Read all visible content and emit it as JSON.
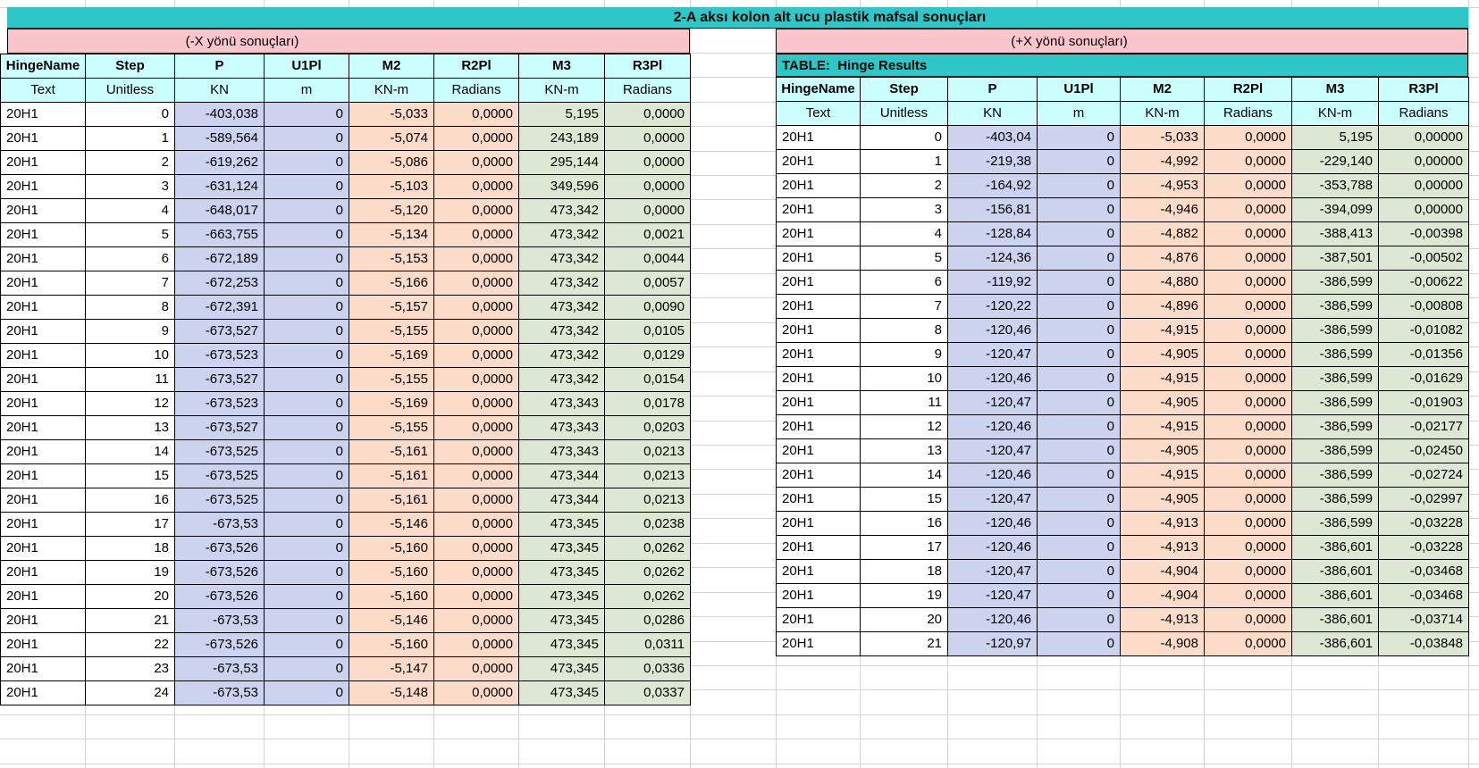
{
  "title": "2-A aksı kolon alt ucu plastik mafsal sonuçları",
  "left_table": {
    "direction_header": "(-X yönü sonuçları)",
    "columns": [
      "HingeName",
      "Step",
      "P",
      "U1Pl",
      "M2",
      "R2Pl",
      "M3",
      "R3Pl"
    ],
    "units": [
      "Text",
      "Unitless",
      "KN",
      "m",
      "KN-m",
      "Radians",
      "KN-m",
      "Radians"
    ],
    "rows": [
      [
        "20H1",
        "0",
        "-403,038",
        "0",
        "-5,033",
        "0,0000",
        "5,195",
        "0,0000"
      ],
      [
        "20H1",
        "1",
        "-589,564",
        "0",
        "-5,074",
        "0,0000",
        "243,189",
        "0,0000"
      ],
      [
        "20H1",
        "2",
        "-619,262",
        "0",
        "-5,086",
        "0,0000",
        "295,144",
        "0,0000"
      ],
      [
        "20H1",
        "3",
        "-631,124",
        "0",
        "-5,103",
        "0,0000",
        "349,596",
        "0,0000"
      ],
      [
        "20H1",
        "4",
        "-648,017",
        "0",
        "-5,120",
        "0,0000",
        "473,342",
        "0,0000"
      ],
      [
        "20H1",
        "5",
        "-663,755",
        "0",
        "-5,134",
        "0,0000",
        "473,342",
        "0,0021"
      ],
      [
        "20H1",
        "6",
        "-672,189",
        "0",
        "-5,153",
        "0,0000",
        "473,342",
        "0,0044"
      ],
      [
        "20H1",
        "7",
        "-672,253",
        "0",
        "-5,166",
        "0,0000",
        "473,342",
        "0,0057"
      ],
      [
        "20H1",
        "8",
        "-672,391",
        "0",
        "-5,157",
        "0,0000",
        "473,342",
        "0,0090"
      ],
      [
        "20H1",
        "9",
        "-673,527",
        "0",
        "-5,155",
        "0,0000",
        "473,342",
        "0,0105"
      ],
      [
        "20H1",
        "10",
        "-673,523",
        "0",
        "-5,169",
        "0,0000",
        "473,342",
        "0,0129"
      ],
      [
        "20H1",
        "11",
        "-673,527",
        "0",
        "-5,155",
        "0,0000",
        "473,342",
        "0,0154"
      ],
      [
        "20H1",
        "12",
        "-673,523",
        "0",
        "-5,169",
        "0,0000",
        "473,343",
        "0,0178"
      ],
      [
        "20H1",
        "13",
        "-673,527",
        "0",
        "-5,155",
        "0,0000",
        "473,343",
        "0,0203"
      ],
      [
        "20H1",
        "14",
        "-673,525",
        "0",
        "-5,161",
        "0,0000",
        "473,343",
        "0,0213"
      ],
      [
        "20H1",
        "15",
        "-673,525",
        "0",
        "-5,161",
        "0,0000",
        "473,344",
        "0,0213"
      ],
      [
        "20H1",
        "16",
        "-673,525",
        "0",
        "-5,161",
        "0,0000",
        "473,344",
        "0,0213"
      ],
      [
        "20H1",
        "17",
        "-673,53",
        "0",
        "-5,146",
        "0,0000",
        "473,345",
        "0,0238"
      ],
      [
        "20H1",
        "18",
        "-673,526",
        "0",
        "-5,160",
        "0,0000",
        "473,345",
        "0,0262"
      ],
      [
        "20H1",
        "19",
        "-673,526",
        "0",
        "-5,160",
        "0,0000",
        "473,345",
        "0,0262"
      ],
      [
        "20H1",
        "20",
        "-673,526",
        "0",
        "-5,160",
        "0,0000",
        "473,345",
        "0,0262"
      ],
      [
        "20H1",
        "21",
        "-673,53",
        "0",
        "-5,146",
        "0,0000",
        "473,345",
        "0,0286"
      ],
      [
        "20H1",
        "22",
        "-673,526",
        "0",
        "-5,160",
        "0,0000",
        "473,345",
        "0,0311"
      ],
      [
        "20H1",
        "23",
        "-673,53",
        "0",
        "-5,147",
        "0,0000",
        "473,345",
        "0,0336"
      ],
      [
        "20H1",
        "24",
        "-673,53",
        "0",
        "-5,148",
        "0,0000",
        "473,345",
        "0,0337"
      ]
    ]
  },
  "right_table": {
    "direction_header": "(+X yönü sonuçları)",
    "table_label": "TABLE:  Hinge Results",
    "columns": [
      "HingeName",
      "Step",
      "P",
      "U1Pl",
      "M2",
      "R2Pl",
      "M3",
      "R3Pl"
    ],
    "units": [
      "Text",
      "Unitless",
      "KN",
      "m",
      "KN-m",
      "Radians",
      "KN-m",
      "Radians"
    ],
    "rows": [
      [
        "20H1",
        "0",
        "-403,04",
        "0",
        "-5,033",
        "0,0000",
        "5,195",
        "0,00000"
      ],
      [
        "20H1",
        "1",
        "-219,38",
        "0",
        "-4,992",
        "0,0000",
        "-229,140",
        "0,00000"
      ],
      [
        "20H1",
        "2",
        "-164,92",
        "0",
        "-4,953",
        "0,0000",
        "-353,788",
        "0,00000"
      ],
      [
        "20H1",
        "3",
        "-156,81",
        "0",
        "-4,946",
        "0,0000",
        "-394,099",
        "0,00000"
      ],
      [
        "20H1",
        "4",
        "-128,84",
        "0",
        "-4,882",
        "0,0000",
        "-388,413",
        "-0,00398"
      ],
      [
        "20H1",
        "5",
        "-124,36",
        "0",
        "-4,876",
        "0,0000",
        "-387,501",
        "-0,00502"
      ],
      [
        "20H1",
        "6",
        "-119,92",
        "0",
        "-4,880",
        "0,0000",
        "-386,599",
        "-0,00622"
      ],
      [
        "20H1",
        "7",
        "-120,22",
        "0",
        "-4,896",
        "0,0000",
        "-386,599",
        "-0,00808"
      ],
      [
        "20H1",
        "8",
        "-120,46",
        "0",
        "-4,915",
        "0,0000",
        "-386,599",
        "-0,01082"
      ],
      [
        "20H1",
        "9",
        "-120,47",
        "0",
        "-4,905",
        "0,0000",
        "-386,599",
        "-0,01356"
      ],
      [
        "20H1",
        "10",
        "-120,46",
        "0",
        "-4,915",
        "0,0000",
        "-386,599",
        "-0,01629"
      ],
      [
        "20H1",
        "11",
        "-120,47",
        "0",
        "-4,905",
        "0,0000",
        "-386,599",
        "-0,01903"
      ],
      [
        "20H1",
        "12",
        "-120,46",
        "0",
        "-4,915",
        "0,0000",
        "-386,599",
        "-0,02177"
      ],
      [
        "20H1",
        "13",
        "-120,47",
        "0",
        "-4,905",
        "0,0000",
        "-386,599",
        "-0,02450"
      ],
      [
        "20H1",
        "14",
        "-120,46",
        "0",
        "-4,915",
        "0,0000",
        "-386,599",
        "-0,02724"
      ],
      [
        "20H1",
        "15",
        "-120,47",
        "0",
        "-4,905",
        "0,0000",
        "-386,599",
        "-0,02997"
      ],
      [
        "20H1",
        "16",
        "-120,46",
        "0",
        "-4,913",
        "0,0000",
        "-386,599",
        "-0,03228"
      ],
      [
        "20H1",
        "17",
        "-120,46",
        "0",
        "-4,913",
        "0,0000",
        "-386,601",
        "-0,03228"
      ],
      [
        "20H1",
        "18",
        "-120,47",
        "0",
        "-4,904",
        "0,0000",
        "-386,601",
        "-0,03468"
      ],
      [
        "20H1",
        "19",
        "-120,47",
        "0",
        "-4,904",
        "0,0000",
        "-386,601",
        "-0,03468"
      ],
      [
        "20H1",
        "20",
        "-120,46",
        "0",
        "-4,913",
        "0,0000",
        "-386,601",
        "-0,03714"
      ],
      [
        "20H1",
        "21",
        "-120,97",
        "0",
        "-4,908",
        "0,0000",
        "-386,601",
        "-0,03848"
      ]
    ]
  },
  "colors": {
    "teal": "#2EC7C7",
    "pink": "#FCC5CC",
    "header_cyan": "#CCFFFF",
    "col_purple": "#CCD3EE",
    "col_peach": "#FCDCC9",
    "col_green": "#DCE8D3",
    "gridline": "#D4D4D4"
  }
}
